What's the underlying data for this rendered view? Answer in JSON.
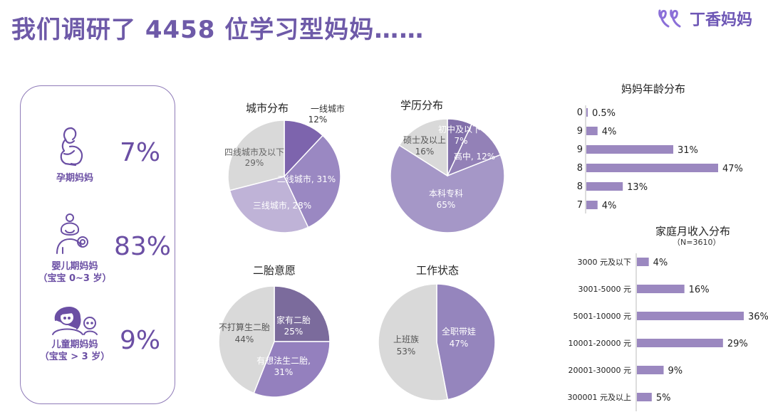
{
  "header": {
    "title": "我们调研了 4458 位学习型妈妈……",
    "logo_text": "丁香妈妈"
  },
  "mom_types": [
    {
      "label": "孕期妈妈",
      "sub": "",
      "pct": "7%"
    },
    {
      "label": "婴儿期妈妈",
      "sub": "（宝宝 0~3 岁）",
      "pct": "83%"
    },
    {
      "label": "儿童期妈妈",
      "sub": "（宝宝 > 3 岁）",
      "pct": "9%"
    }
  ],
  "colors": {
    "accent": "#6b4fa4",
    "bar": "#9b88c0"
  },
  "chart_data": [
    {
      "id": "city",
      "type": "pie",
      "title": "城市分布",
      "slices": [
        {
          "label": "一线城市",
          "value": 12,
          "text": "12%",
          "color": "#7d64ad"
        },
        {
          "label": "二线城市",
          "value": 31,
          "text": "31%",
          "color": "#9a88c2"
        },
        {
          "label": "三线城市",
          "value": 28,
          "text": "28%",
          "color": "#bfb3d7"
        },
        {
          "label": "四线城市及以下",
          "value": 29,
          "text": "29%",
          "color": "#d9d9d9"
        }
      ]
    },
    {
      "id": "edu",
      "type": "pie",
      "title": "学历分布",
      "slices": [
        {
          "label": "初中及以下",
          "value": 7,
          "text": "7%",
          "color": "#8270aa"
        },
        {
          "label": "高中",
          "value": 12,
          "text": "12%",
          "color": "#9381b7"
        },
        {
          "label": "本科专科",
          "value": 65,
          "text": "65%",
          "color": "#a597c7"
        },
        {
          "label": "硕士及以上",
          "value": 16,
          "text": "16%",
          "color": "#d9d9d9"
        }
      ]
    },
    {
      "id": "second",
      "type": "pie",
      "title": "二胎意愿",
      "slices": [
        {
          "label": "家有二胎",
          "value": 25,
          "text": "25%",
          "color": "#7b6b9c"
        },
        {
          "label": "有想法生二胎,",
          "value": 31,
          "text": "31%",
          "color": "#9480be"
        },
        {
          "label": "不打算生二胎",
          "value": 44,
          "text": "44%",
          "color": "#d9d9d9"
        }
      ]
    },
    {
      "id": "work",
      "type": "pie",
      "title": "工作状态",
      "slices": [
        {
          "label": "全职带娃",
          "value": 47,
          "text": "47%",
          "color": "#9585bd"
        },
        {
          "label": "上班族",
          "value": 53,
          "text": "53%",
          "color": "#d9d9d9"
        }
      ]
    },
    {
      "id": "age",
      "type": "bar",
      "orientation": "horizontal",
      "title": "妈妈年龄分布",
      "categories": [
        "0",
        "9",
        "9",
        "8",
        "8",
        "7"
      ],
      "values": [
        0.5,
        4,
        31,
        47,
        13,
        4
      ],
      "value_labels": [
        "0.5%",
        "4%",
        "31%",
        "47%",
        "13%",
        "4%"
      ],
      "xlim": [
        0,
        55
      ]
    },
    {
      "id": "income",
      "type": "bar",
      "orientation": "horizontal",
      "title": "家庭月收入分布",
      "subtitle": "（N=3610）",
      "categories": [
        "3000 元及以下",
        "3001-5000 元",
        "5001-10000 元",
        "10001-20000 元",
        "20001-30000 元",
        "300001 元及以上"
      ],
      "values": [
        4,
        16,
        36,
        29,
        9,
        5
      ],
      "value_labels": [
        "4%",
        "16%",
        "36%",
        "29%",
        "9%",
        "5%"
      ],
      "xlim": [
        0,
        40
      ]
    }
  ]
}
